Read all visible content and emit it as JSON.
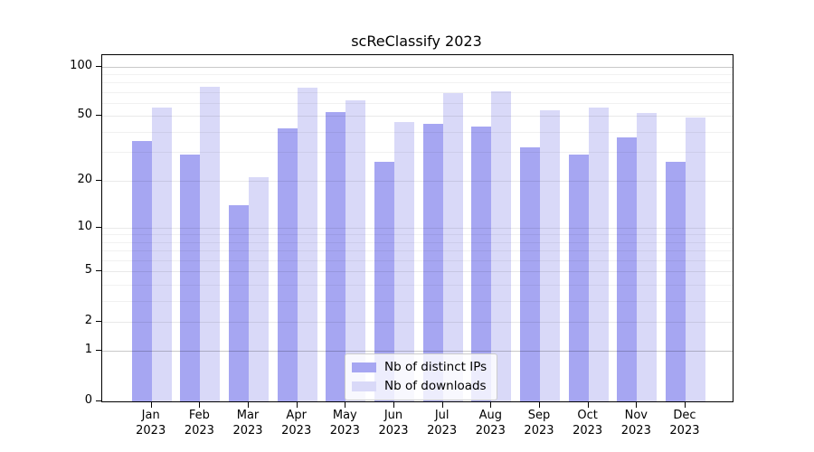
{
  "chart_data": {
    "type": "bar",
    "title": "scReClassify 2023",
    "year_label": "2023",
    "categories": [
      "Jan",
      "Feb",
      "Mar",
      "Apr",
      "May",
      "Jun",
      "Jul",
      "Aug",
      "Sep",
      "Oct",
      "Nov",
      "Dec"
    ],
    "series": [
      {
        "name": "Nb of distinct IPs",
        "key": "distinct-ips",
        "color": "#a6a6f2",
        "values": [
          35,
          29,
          14,
          42,
          53,
          26,
          45,
          43,
          32,
          29,
          37,
          26
        ]
      },
      {
        "name": "Nb of downloads",
        "key": "downloads",
        "color": "#d9d9f8",
        "values": [
          56,
          75,
          21,
          74,
          62,
          46,
          69,
          71,
          54,
          56,
          52,
          49
        ]
      }
    ],
    "y_axis": {
      "scale": "log1p",
      "ticks": [
        0,
        1,
        2,
        5,
        10,
        20,
        50,
        100
      ],
      "max": 117,
      "minor_gridlines": [
        3,
        4,
        6,
        7,
        8,
        9,
        30,
        40,
        60,
        70,
        80,
        90
      ],
      "emphasized_gridlines": [
        1,
        100
      ]
    },
    "xlabel": "",
    "ylabel": "",
    "grid": true,
    "legend": {
      "position": "lower center"
    }
  }
}
